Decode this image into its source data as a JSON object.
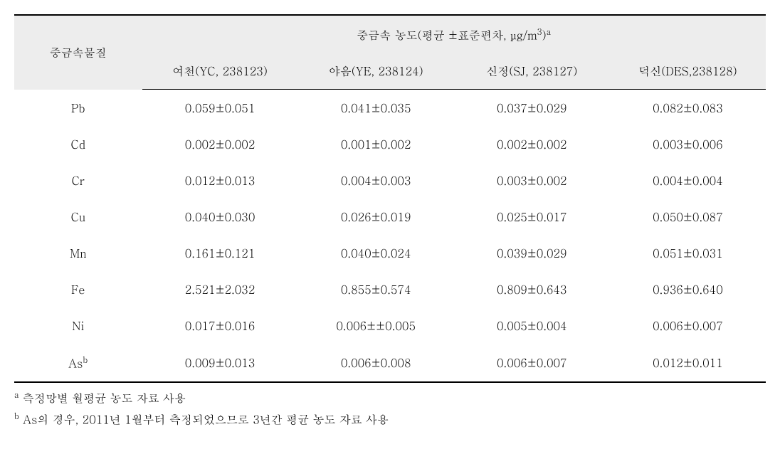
{
  "table": {
    "rowHeaderLabel": "중금속물질",
    "groupHeader": {
      "prefix": "중금속 농도(평균 ±표준편차, ",
      "unitBase": "μg/m",
      "unitExp": "3",
      "closeParen": ")",
      "sup": "a"
    },
    "columns": [
      "여천(YC, 238123)",
      "야음(YE, 238124)",
      "신정(SJ, 238127)",
      "덕신(DES,238128)"
    ],
    "rows": [
      {
        "label": "Pb",
        "sup": "",
        "values": [
          "0.059±0.051",
          "0.041±0.035",
          "0.037±0.029",
          "0.082±0.083"
        ]
      },
      {
        "label": "Cd",
        "sup": "",
        "values": [
          "0.002±0.002",
          "0.001±0.002",
          "0.002±0.002",
          "0.003±0.006"
        ]
      },
      {
        "label": "Cr",
        "sup": "",
        "values": [
          "0.012±0.013",
          "0.004±0.003",
          "0.003±0.002",
          "0.004±0.004"
        ]
      },
      {
        "label": "Cu",
        "sup": "",
        "values": [
          "0.040±0.030",
          "0.026±0.019",
          "0.025±0.017",
          "0.050±0.087"
        ]
      },
      {
        "label": "Mn",
        "sup": "",
        "values": [
          "0.161±0.121",
          "0.040±0.024",
          "0.039±0.029",
          "0.051±0.031"
        ]
      },
      {
        "label": "Fe",
        "sup": "",
        "values": [
          "2.521±2.032",
          "0.855±0.574",
          "0.809±0.643",
          "0.936±0.640"
        ]
      },
      {
        "label": "Ni",
        "sup": "",
        "values": [
          "0.017±0.016",
          "0.006±±0.005",
          "0.005±0.004",
          "0.006±0.007"
        ]
      },
      {
        "label": "As",
        "sup": "b",
        "values": [
          "0.009±0.013",
          "0.006±0.008",
          "0.006±0.007",
          "0.012±0.011"
        ]
      }
    ]
  },
  "footnotes": [
    {
      "marker": "a",
      "text": "측정망별 월평균 농도 자료 사용"
    },
    {
      "marker": "b",
      "text": "As의 경우, 2011년 1월부터 측정되었으므로 3년간 평균 농도 자료 사용"
    }
  ]
}
